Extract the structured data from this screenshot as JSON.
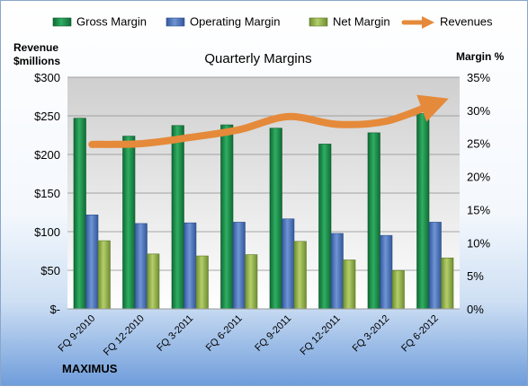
{
  "chart_data": {
    "type": "bar",
    "title": "Quarterly Margins",
    "ylabel_left": "Revenue\n$millions",
    "ylabel_right": "Margin %",
    "categories": [
      "FQ 9-2010",
      "FQ 12-2010",
      "FQ 3-2011",
      "FQ 6-2011",
      "FQ 9-2011",
      "FQ 12-2011",
      "FQ 3-2012",
      "FQ 6-2012"
    ],
    "left_axis": {
      "min": 0,
      "max": 300,
      "step": 50,
      "tick_labels": [
        "$-",
        "$50",
        "$100",
        "$150",
        "$200",
        "$250",
        "$300"
      ]
    },
    "right_axis": {
      "min": 0,
      "max": 35,
      "step": 5,
      "tick_labels": [
        "0%",
        "5%",
        "10%",
        "15%",
        "20%",
        "25%",
        "30%",
        "35%"
      ]
    },
    "grid": true,
    "legend_position": "top",
    "series": [
      {
        "name": "Gross Margin",
        "type": "bar",
        "axis": "right",
        "color": "#1e8a4c",
        "values": [
          28.8,
          26.1,
          27.7,
          27.8,
          27.3,
          24.9,
          26.6,
          29.5
        ]
      },
      {
        "name": "Operating Margin",
        "type": "bar",
        "axis": "right",
        "color": "#4a72b8",
        "values": [
          14.2,
          12.9,
          13.0,
          13.1,
          13.6,
          11.4,
          11.1,
          13.1
        ]
      },
      {
        "name": "Net Margin",
        "type": "bar",
        "axis": "right",
        "color": "#8fb04a",
        "values": [
          10.3,
          8.3,
          8.0,
          8.2,
          10.2,
          7.4,
          5.8,
          7.7
        ]
      },
      {
        "name": "Revenues",
        "type": "line",
        "axis": "left",
        "color": "#e58a3a",
        "values": [
          213,
          214,
          222,
          232,
          249,
          239,
          243,
          266
        ]
      }
    ],
    "footer_label": "MAXIMUS"
  }
}
